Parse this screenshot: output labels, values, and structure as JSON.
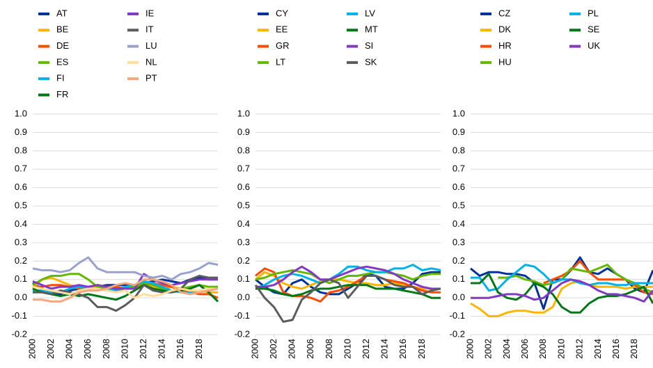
{
  "chart_data": [
    {
      "type": "line",
      "xlim": [
        2000,
        2020
      ],
      "ylim": [
        -0.2,
        1.0
      ],
      "yticks": [
        -0.2,
        -0.1,
        {
          "value": 0,
          "label": "0.0"
        },
        0.1,
        0.2,
        0.3,
        0.4,
        0.5,
        0.6,
        0.7,
        0.8,
        0.9,
        {
          "value": 1,
          "label": "1.0"
        }
      ],
      "xticks": [
        2000,
        2002,
        2004,
        2006,
        2008,
        2010,
        2012,
        2014,
        2016,
        2018
      ],
      "grid": true,
      "x": [
        2000,
        2001,
        2002,
        2003,
        2004,
        2005,
        2006,
        2007,
        2008,
        2009,
        2010,
        2011,
        2012,
        2013,
        2014,
        2015,
        2016,
        2017,
        2018,
        2019,
        2020
      ],
      "series": [
        {
          "name": "AT",
          "color": "#003299",
          "values": [
            0.08,
            0.05,
            0.03,
            0.02,
            0.04,
            0.05,
            0.06,
            0.06,
            0.07,
            0.07,
            0.07,
            0.06,
            0.08,
            0.09,
            0.1,
            0.09,
            0.08,
            0.1,
            0.11,
            0.1,
            0.1
          ]
        },
        {
          "name": "BE",
          "color": "#ffb400",
          "values": [
            0.05,
            0.1,
            0.11,
            0.09,
            0.07,
            0.06,
            0.05,
            0.06,
            0.06,
            0.05,
            0.06,
            0.05,
            0.07,
            0.06,
            0.05,
            0.06,
            0.05,
            0.04,
            0.04,
            0.03,
            0.03
          ]
        },
        {
          "name": "DE",
          "color": "#ff4b00",
          "values": [
            0.06,
            0.06,
            0.07,
            0.07,
            0.06,
            0.05,
            0.06,
            0.07,
            0.06,
            0.06,
            0.05,
            0.05,
            0.07,
            0.08,
            0.07,
            0.06,
            0.04,
            0.03,
            0.02,
            0.02,
            0.0
          ]
        },
        {
          "name": "ES",
          "color": "#65b800",
          "values": [
            0.07,
            0.1,
            0.12,
            0.12,
            0.13,
            0.13,
            0.1,
            0.06,
            0.05,
            0.04,
            0.05,
            0.06,
            0.08,
            0.07,
            0.05,
            0.04,
            0.05,
            0.06,
            0.07,
            0.06,
            0.06
          ]
        },
        {
          "name": "FI",
          "color": "#00b1ea",
          "values": [
            0.04,
            0.04,
            0.03,
            0.03,
            0.05,
            0.06,
            0.05,
            0.05,
            0.04,
            0.04,
            0.06,
            0.07,
            0.09,
            0.08,
            0.06,
            0.04,
            0.03,
            0.03,
            0.04,
            0.05,
            0.05
          ]
        },
        {
          "name": "FR",
          "color": "#007816",
          "values": [
            0.05,
            0.03,
            0.02,
            0.01,
            0.02,
            0.01,
            0.02,
            0.01,
            0.0,
            -0.01,
            0.01,
            0.04,
            0.07,
            0.05,
            0.04,
            0.03,
            0.04,
            0.05,
            0.07,
            0.03,
            -0.02
          ]
        },
        {
          "name": "IE",
          "color": "#8139c6",
          "values": [
            0.09,
            0.07,
            0.05,
            0.06,
            0.06,
            0.07,
            0.06,
            0.07,
            0.06,
            0.05,
            0.05,
            0.05,
            0.13,
            0.1,
            0.08,
            0.07,
            0.08,
            0.09,
            0.1,
            0.1,
            0.1
          ]
        },
        {
          "name": "IT",
          "color": "#5c5c5c",
          "values": [
            0.03,
            0.03,
            0.02,
            0.04,
            0.03,
            0.02,
            0.0,
            -0.05,
            -0.05,
            -0.07,
            -0.04,
            0.0,
            0.07,
            0.04,
            0.03,
            0.03,
            0.05,
            0.1,
            0.12,
            0.11,
            0.11
          ]
        },
        {
          "name": "LU",
          "color": "#98a1d0",
          "values": [
            0.16,
            0.15,
            0.15,
            0.14,
            0.15,
            0.19,
            0.22,
            0.16,
            0.14,
            0.14,
            0.14,
            0.14,
            0.12,
            0.11,
            0.12,
            0.1,
            0.13,
            0.14,
            0.16,
            0.19,
            0.18
          ]
        },
        {
          "name": "NL",
          "color": "#fdde9c",
          "values": [
            0.06,
            0.05,
            0.04,
            0.03,
            0.02,
            0.04,
            0.05,
            0.05,
            0.04,
            0.03,
            0.04,
            0.0,
            0.02,
            0.01,
            0.02,
            0.04,
            0.05,
            0.04,
            0.04,
            0.05,
            0.05
          ]
        },
        {
          "name": "PT",
          "color": "#f3a87c",
          "values": [
            -0.01,
            -0.01,
            -0.02,
            -0.02,
            0.0,
            0.03,
            0.04,
            0.04,
            0.05,
            0.07,
            0.08,
            0.07,
            0.1,
            0.1,
            0.09,
            0.07,
            0.03,
            0.02,
            0.03,
            0.04,
            0.05
          ]
        }
      ]
    },
    {
      "type": "line",
      "xlim": [
        2000,
        2020
      ],
      "ylim": [
        -0.2,
        1.0
      ],
      "yticks": [
        -0.2,
        -0.1,
        {
          "value": 0,
          "label": "0.0"
        },
        0.1,
        0.2,
        0.3,
        0.4,
        0.5,
        0.6,
        0.7,
        0.8,
        0.9,
        {
          "value": 1,
          "label": "1.0"
        }
      ],
      "xticks": [
        2000,
        2002,
        2004,
        2006,
        2008,
        2010,
        2012,
        2014,
        2016,
        2018
      ],
      "grid": true,
      "x": [
        2000,
        2001,
        2002,
        2003,
        2004,
        2005,
        2006,
        2007,
        2008,
        2009,
        2010,
        2011,
        2012,
        2013,
        2014,
        2015,
        2016,
        2017,
        2018,
        2019,
        2020
      ],
      "series": [
        {
          "name": "CY",
          "color": "#003299",
          "values": [
            0.1,
            0.06,
            0.03,
            0.02,
            0.08,
            0.1,
            0.06,
            0.03,
            0.02,
            0.02,
            0.05,
            0.08,
            0.13,
            0.12,
            0.06,
            0.05,
            0.05,
            0.08,
            0.13,
            0.14,
            0.14
          ]
        },
        {
          "name": "EE",
          "color": "#ffb400",
          "values": [
            0.1,
            0.14,
            0.12,
            0.08,
            0.06,
            0.05,
            0.07,
            0.09,
            0.1,
            0.1,
            0.09,
            0.08,
            0.08,
            0.07,
            0.07,
            0.08,
            0.07,
            0.06,
            0.05,
            0.05,
            0.05
          ]
        },
        {
          "name": "GR",
          "color": "#ff4b00",
          "values": [
            0.12,
            0.16,
            0.14,
            0.03,
            0.01,
            0.01,
            0.0,
            -0.02,
            0.03,
            0.04,
            0.06,
            0.09,
            0.12,
            0.12,
            0.1,
            0.09,
            0.08,
            0.06,
            0.04,
            0.03,
            0.03
          ]
        },
        {
          "name": "LT",
          "color": "#65b800",
          "values": [
            0.1,
            0.11,
            0.13,
            0.14,
            0.15,
            0.14,
            0.13,
            0.1,
            0.08,
            0.1,
            0.12,
            0.12,
            0.13,
            0.14,
            0.14,
            0.13,
            0.12,
            0.1,
            0.12,
            0.13,
            0.13
          ]
        },
        {
          "name": "LV",
          "color": "#00b1ea",
          "values": [
            0.05,
            0.07,
            0.1,
            0.12,
            0.13,
            0.12,
            0.1,
            0.08,
            0.1,
            0.13,
            0.17,
            0.17,
            0.15,
            0.14,
            0.14,
            0.16,
            0.16,
            0.18,
            0.15,
            0.16,
            0.15
          ]
        },
        {
          "name": "MT",
          "color": "#007816",
          "values": [
            0.05,
            0.05,
            0.04,
            0.02,
            0.01,
            0.02,
            0.04,
            0.05,
            0.05,
            0.06,
            0.07,
            0.07,
            0.07,
            0.05,
            0.05,
            0.05,
            0.04,
            0.03,
            0.02,
            0.0,
            0.0
          ]
        },
        {
          "name": "SI",
          "color": "#8139c6",
          "values": [
            0.06,
            0.06,
            0.07,
            0.1,
            0.14,
            0.17,
            0.14,
            0.1,
            0.1,
            0.12,
            0.14,
            0.16,
            0.17,
            0.16,
            0.15,
            0.13,
            0.1,
            0.08,
            0.06,
            0.05,
            0.05
          ]
        },
        {
          "name": "SK",
          "color": "#5c5c5c",
          "values": [
            0.07,
            0.0,
            -0.05,
            -0.13,
            -0.12,
            -0.01,
            0.03,
            0.08,
            0.1,
            0.08,
            0.0,
            0.06,
            0.12,
            0.12,
            0.1,
            0.07,
            0.06,
            0.06,
            0.02,
            0.04,
            0.05
          ]
        }
      ]
    },
    {
      "type": "line",
      "xlim": [
        2000,
        2020
      ],
      "ylim": [
        -0.2,
        1.0
      ],
      "yticks": [
        -0.2,
        -0.1,
        {
          "value": 0,
          "label": "0.0"
        },
        0.1,
        0.2,
        0.3,
        0.4,
        0.5,
        0.6,
        0.7,
        0.8,
        0.9,
        {
          "value": 1,
          "label": "1.0"
        }
      ],
      "xticks": [
        2000,
        2002,
        2004,
        2006,
        2008,
        2010,
        2012,
        2014,
        2016,
        2018
      ],
      "grid": true,
      "x": [
        2000,
        2001,
        2002,
        2003,
        2004,
        2005,
        2006,
        2007,
        2008,
        2009,
        2010,
        2011,
        2012,
        2013,
        2014,
        2015,
        2016,
        2017,
        2018,
        2019,
        2020
      ],
      "series": [
        {
          "name": "CZ",
          "color": "#003299",
          "values": [
            0.16,
            0.12,
            0.14,
            0.14,
            0.13,
            0.13,
            0.12,
            0.08,
            -0.06,
            0.1,
            0.1,
            0.15,
            0.22,
            0.14,
            0.13,
            0.16,
            0.13,
            0.1,
            0.05,
            0.03,
            0.15
          ]
        },
        {
          "name": "DK",
          "color": "#ffb400",
          "values": [
            -0.03,
            -0.06,
            -0.1,
            -0.1,
            -0.08,
            -0.07,
            -0.07,
            -0.08,
            -0.08,
            -0.05,
            0.05,
            0.08,
            0.09,
            0.07,
            0.06,
            0.06,
            0.06,
            0.05,
            0.06,
            0.06,
            0.06
          ]
        },
        {
          "name": "HR",
          "color": "#ff4b00",
          "values": [
            null,
            null,
            null,
            null,
            null,
            null,
            null,
            null,
            0.08,
            0.1,
            0.12,
            0.15,
            0.2,
            0.14,
            0.1,
            0.1,
            0.1,
            0.1,
            0.07,
            0.03,
            0.02
          ]
        },
        {
          "name": "HU",
          "color": "#65b800",
          "values": [
            null,
            null,
            null,
            0.11,
            0.11,
            0.12,
            0.1,
            0.09,
            0.07,
            0.08,
            0.1,
            0.16,
            0.15,
            0.14,
            0.16,
            0.18,
            0.13,
            0.1,
            0.08,
            0.05,
            0.03
          ]
        },
        {
          "name": "PL",
          "color": "#00b1ea",
          "values": [
            0.11,
            0.11,
            0.04,
            0.05,
            0.1,
            0.14,
            0.18,
            0.17,
            0.13,
            0.08,
            0.1,
            0.1,
            0.08,
            0.07,
            0.08,
            0.08,
            0.07,
            0.07,
            0.08,
            0.08,
            0.08
          ]
        },
        {
          "name": "SE",
          "color": "#007816",
          "values": [
            0.08,
            0.08,
            0.13,
            0.03,
            0.0,
            -0.01,
            0.02,
            0.08,
            0.06,
            0.02,
            -0.05,
            -0.08,
            -0.08,
            -0.03,
            0.0,
            0.01,
            0.01,
            0.02,
            0.04,
            0.06,
            -0.03
          ]
        },
        {
          "name": "UK",
          "color": "#8139c6",
          "values": [
            0.0,
            0.0,
            0.0,
            0.01,
            0.02,
            0.02,
            0.01,
            -0.01,
            0.0,
            0.04,
            0.08,
            0.1,
            0.09,
            0.07,
            0.04,
            0.02,
            0.02,
            0.01,
            0.0,
            -0.02,
            0.04
          ]
        }
      ]
    }
  ]
}
